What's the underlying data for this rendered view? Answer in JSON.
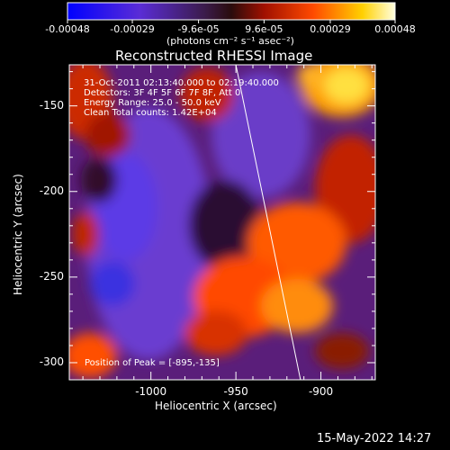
{
  "colorbar": {
    "tick_labels": [
      "-0.00048",
      "-0.00029",
      "-9.6e-05",
      "9.6e-05",
      "0.00029",
      "0.00048"
    ],
    "units": "(photons cm⁻² s⁻¹ asec⁻²)",
    "range": [
      -0.00048,
      0.00048
    ]
  },
  "image": {
    "title": "Reconstructed RHESSI Image",
    "xlabel": "Heliocentric X (arcsec)",
    "ylabel": "Heliocentric Y (arcsec)",
    "x_ticks": [
      "-1000",
      "-950",
      "-900"
    ],
    "y_ticks": [
      "-150",
      "-200",
      "-250",
      "-300"
    ],
    "xlim": [
      -1048,
      -868
    ],
    "ylim": [
      -310,
      -126
    ],
    "info_lines": [
      "31-Oct-2011 02:13:40.000 to 02:19:40.000",
      "Detectors: 3F 4F 5F 6F 7F 8F, Att 0",
      "Energy Range: 25.0 - 50.0 keV",
      "Clean    Total counts: 1.42E+04"
    ],
    "peak_label": "Position of Peak = [-895,-135]",
    "limb_line": {
      "x_top": -950,
      "y_top": -126,
      "x_bottom": -912,
      "y_bottom": -310
    }
  },
  "footer": {
    "date": "15-May-2022 14:27"
  },
  "colors": {
    "background": "#000000",
    "text": "#ffffff",
    "low": "#1a1aff",
    "mid_low": "#7a3bd0",
    "mid": "#3a1a3a",
    "mid_high": "#cc2200",
    "high": "#ffffff"
  }
}
